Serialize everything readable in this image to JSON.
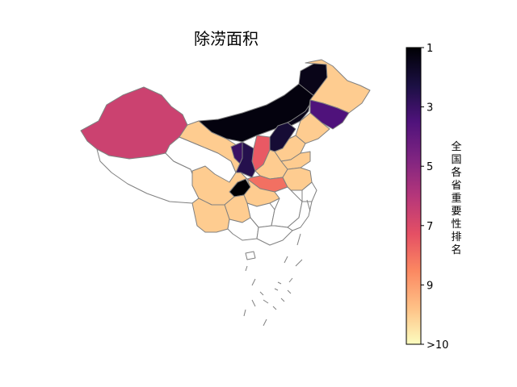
{
  "title": "除涝面积",
  "colorbar": {
    "label": "全国各省重要性排名",
    "ticks": [
      "1",
      "3",
      "5",
      "7",
      "9",
      ">10"
    ],
    "tick_values": [
      1,
      3,
      5,
      7,
      9,
      11
    ],
    "range": [
      1,
      11
    ],
    "colormap": "magma_r"
  },
  "regions": [
    {
      "id": "xinjiang",
      "rank": 6.6
    },
    {
      "id": "gansu",
      "rank": 10
    },
    {
      "id": "inner-mongolia-west",
      "rank": 1.2
    },
    {
      "id": "inner-mongolia-east",
      "rank": 1.4
    },
    {
      "id": "heilongjiang",
      "rank": 10
    },
    {
      "id": "jilin",
      "rank": 3.5
    },
    {
      "id": "liaoning",
      "rank": 10
    },
    {
      "id": "ningxia",
      "rank": 3
    },
    {
      "id": "shaanxi-north",
      "rank": 7.5
    },
    {
      "id": "shanxi",
      "rank": 2.5
    },
    {
      "id": "hebei",
      "rank": 10
    },
    {
      "id": "beijing-tianjin",
      "rank": 2
    },
    {
      "id": "shandong",
      "rank": 10
    },
    {
      "id": "henan",
      "rank": 10
    },
    {
      "id": "shaanxi-south",
      "rank": 8
    },
    {
      "id": "sichuan",
      "rank": 10
    },
    {
      "id": "chongqing",
      "rank": 1
    },
    {
      "id": "hubei",
      "rank": 10
    },
    {
      "id": "guizhou",
      "rank": 10
    },
    {
      "id": "yunnan",
      "rank": 10
    },
    {
      "id": "jiangsu-anhui",
      "rank": 10
    },
    {
      "id": "tibet",
      "rank": 11
    },
    {
      "id": "qinghai",
      "rank": 11
    },
    {
      "id": "hunan",
      "rank": 11
    },
    {
      "id": "jiangxi",
      "rank": 11
    },
    {
      "id": "zhejiang",
      "rank": 11
    },
    {
      "id": "fujian",
      "rank": 11
    },
    {
      "id": "guangdong",
      "rank": 11
    },
    {
      "id": "guangxi",
      "rank": 11
    }
  ]
}
